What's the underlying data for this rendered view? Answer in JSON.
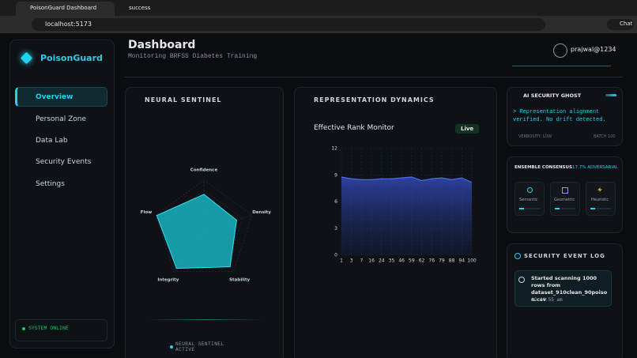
{
  "browser": {
    "tabs": [
      "PoisonGuard Dashboard",
      "success"
    ],
    "url": "localhost:5173",
    "chat": "Chat"
  },
  "sidebar": {
    "brand": "PoisonGuard",
    "nav": [
      "Overview",
      "Personal Zone",
      "Data Lab",
      "Security Events",
      "Settings"
    ],
    "status": "SYSTEM ONLINE"
  },
  "header": {
    "title": "Dashboard",
    "subtitle": "Monitoring BRFSS Diabetes Training",
    "user": "prajwal@1234"
  },
  "neural_sentinel": {
    "title": "NEURAL SENTINEL",
    "status": "NEURAL SENTINEL ACTIVE",
    "chart_data": {
      "type": "radar",
      "categories": [
        "Confidence",
        "Density",
        "Stability",
        "Integrity",
        "Flow"
      ],
      "values": [
        72,
        68,
        88,
        92,
        98
      ],
      "rlim": [
        0,
        100
      ],
      "color": "#16b3bf"
    }
  },
  "representation": {
    "title": "REPRESENTATION DYNAMICS",
    "badge": "Live",
    "chart_data": {
      "type": "area",
      "title": "Effective Rank Monitor",
      "categories": [
        "1",
        "3",
        "7",
        "16",
        "24",
        "35",
        "46",
        "59",
        "62",
        "76",
        "79",
        "88",
        "94",
        "100"
      ],
      "values": [
        8.8,
        8.6,
        8.5,
        8.5,
        8.6,
        8.6,
        8.7,
        8.8,
        8.4,
        8.6,
        8.7,
        8.5,
        8.7,
        8.2
      ],
      "ylim": [
        0,
        12
      ],
      "yticks": [
        0,
        3,
        6,
        9,
        12
      ],
      "color": "#4a6cf0",
      "grid": true
    }
  },
  "ghost": {
    "title": "AI SECURITY GHOST",
    "message": "> Representation alignment verified. No drift detected.",
    "verbosity": "VERBOSITY: LOW",
    "batch": "BATCH 100"
  },
  "ensemble": {
    "title": "ENSEMBLE CONSENSUS",
    "adversarial": "17.7% ADVERSARIAL",
    "models": [
      "Semantic",
      "Geometric",
      "Heuristic"
    ]
  },
  "event_log": {
    "title": "SECURITY EVENT LOG",
    "events": [
      {
        "text": "Started scanning 1000 rows from dataset_910clean_90poison.csv",
        "time": "12:44:55 am"
      }
    ]
  }
}
